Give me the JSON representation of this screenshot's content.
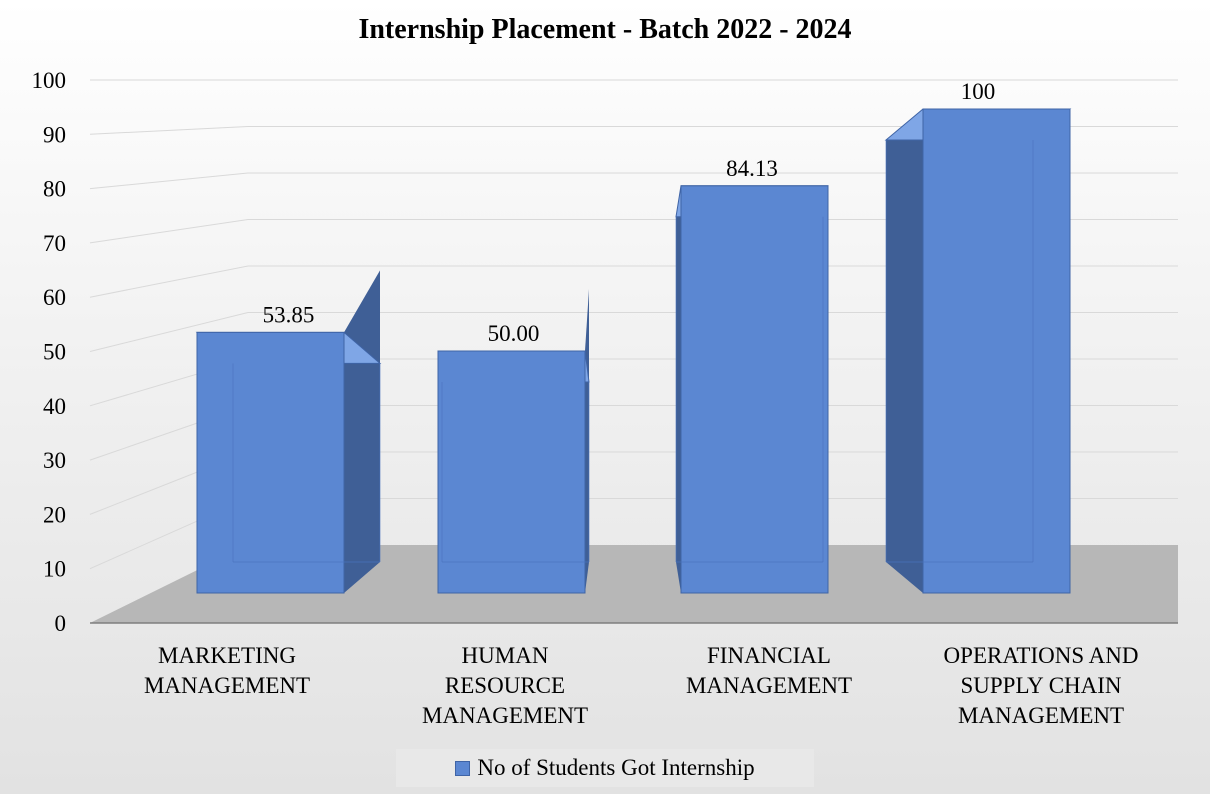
{
  "chart_data": {
    "type": "bar",
    "title": "Internship Placement - Batch 2022 - 2024",
    "categories": [
      [
        "MARKETING",
        "MANAGEMENT"
      ],
      [
        "HUMAN",
        "RESOURCE",
        "MANAGEMENT"
      ],
      [
        "FINANCIAL",
        "MANAGEMENT"
      ],
      [
        "OPERATIONS AND",
        "SUPPLY CHAIN",
        "MANAGEMENT"
      ]
    ],
    "series": [
      {
        "name": "No of Students Got Internship",
        "values": [
          53.85,
          50.0,
          84.13,
          100
        ],
        "labels": [
          "53.85",
          "50.00",
          "84.13",
          "100"
        ]
      }
    ],
    "ylim": [
      0,
      100
    ],
    "yticks": [
      0,
      10,
      20,
      30,
      40,
      50,
      60,
      70,
      80,
      90,
      100
    ],
    "grid": true,
    "legend_position": "bottom",
    "colors": {
      "bar_front": "#5b87d2",
      "bar_side": "#3f5f96",
      "bar_top": "#7fa6e6",
      "grid": "#d9d9d9",
      "floor": "#b7b7b7",
      "legend_bg": "#e8e8e8"
    }
  }
}
